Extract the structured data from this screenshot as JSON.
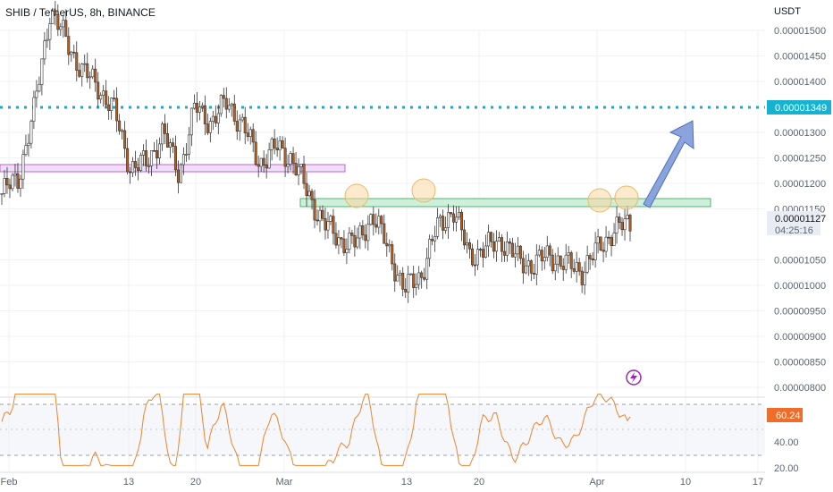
{
  "header": {
    "title": "SHIB / TetherUS, 8h, BINANCE",
    "currency": "USDT"
  },
  "colors": {
    "up": "#6b6b6b",
    "down": "#b45f1e",
    "resistance_line": "#22a6c7",
    "rsi_line": "#e9852e",
    "support_zone": "#8fd3a3",
    "old_zone": "#d9a6e8",
    "arrow": "#7b96d2",
    "circle": "#f7d9a0",
    "price_label_bg": "#17b2cf",
    "rsi_label_bg": "#ef6d2b"
  },
  "price_scale": {
    "ticks": [
      "0.00001500",
      "0.00001450",
      "0.00001400",
      "0.00001349",
      "0.00001300",
      "0.00001250",
      "0.00001200",
      "0.00001150",
      "0.00001127",
      "0.00001050",
      "0.00001000",
      "0.00000950",
      "0.00000900",
      "0.00000850",
      "0.00000800"
    ],
    "tick_values": [
      1.5e-05,
      1.45e-05,
      1.4e-05,
      1.349e-05,
      1.3e-05,
      1.25e-05,
      1.2e-05,
      1.15e-05,
      1.127e-05,
      1.05e-05,
      1e-05,
      9.5e-06,
      9e-06,
      8.5e-06,
      8e-06
    ],
    "current_price": "0.00001127",
    "countdown": "04:25:16",
    "resistance_label": "0.00001349"
  },
  "rsi_scale": {
    "ticks": [
      "40.00",
      "20.00"
    ],
    "current": "60.24"
  },
  "time_axis": {
    "labels": [
      "Feb",
      "13",
      "20",
      "Mar",
      "13",
      "20",
      "Apr",
      "10",
      "17"
    ]
  },
  "chart_data": {
    "type": "candlestick",
    "title": "SHIB / TetherUS, 8h, BINANCE",
    "y_unit": "USDT",
    "ylim": [
      7.8e-06,
      1.56e-05
    ],
    "series": [
      {
        "name": "SHIB / TetherUS",
        "type": "close",
        "x": [
          "Feb",
          "13",
          "20",
          "Mar",
          "13",
          "20",
          "Apr"
        ],
        "close_path": [
          1.18e-05,
          1.21e-05,
          1.34e-05,
          1.54e-05,
          1.48e-05,
          1.42e-05,
          1.39e-05,
          1.34e-05,
          1.23e-05,
          1.24e-05,
          1.3e-05,
          1.22e-05,
          1.35e-05,
          1.32e-05,
          1.36e-05,
          1.31e-05,
          1.24e-05,
          1.27e-05,
          1.25e-05,
          1.18e-05,
          1.12e-05,
          1.09e-05,
          1.08e-05,
          1.14e-05,
          1.07e-05,
          9.9e-06,
          1.02e-05,
          1.11e-05,
          1.15e-05,
          1.06e-05,
          1.07e-05,
          1.09e-05,
          1.05e-05,
          1.04e-05,
          1.06e-05,
          1.04e-05,
          1.03e-05,
          1.07e-05,
          1.11e-05,
          1.12e-05
        ]
      }
    ],
    "levels": [
      {
        "value": 1.349e-05,
        "style": "dotted"
      },
      {
        "zone": [
          1.15e-05,
          1.17e-05
        ]
      },
      {
        "zone": [
          1.22e-05,
          1.23e-05
        ]
      }
    ],
    "rsi": {
      "current": 60.24,
      "ylim": [
        20,
        80
      ],
      "ticks": [
        40,
        20
      ],
      "bands": [
        30,
        70
      ]
    }
  }
}
